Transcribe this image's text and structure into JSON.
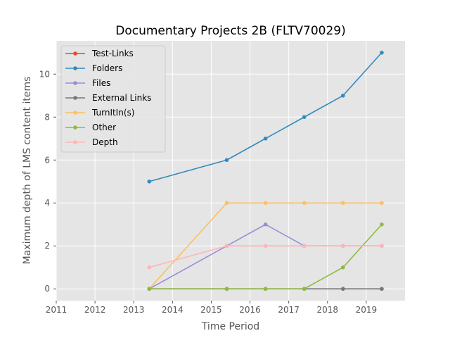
{
  "chart_data": {
    "type": "line",
    "title": "Documentary Projects 2B (FLTV70029)",
    "xlabel": "Time Period",
    "ylabel": "Maximum depth of LMS content items",
    "xlim": [
      2011.0,
      2020.0
    ],
    "ylim": [
      -0.55,
      11.55
    ],
    "x_ticks": [
      2011,
      2012,
      2013,
      2014,
      2015,
      2016,
      2017,
      2018,
      2019
    ],
    "x_tick_labels": [
      "2011",
      "2012",
      "2013",
      "2014",
      "2015",
      "2016",
      "2017",
      "2018",
      "2019"
    ],
    "y_ticks": [
      0,
      2,
      4,
      6,
      8,
      10
    ],
    "y_tick_labels": [
      "0",
      "2",
      "4",
      "6",
      "8",
      "10"
    ],
    "grid": true,
    "legend_position": "top-left",
    "x": [
      2013.4,
      2015.4,
      2016.4,
      2017.4,
      2018.4,
      2019.4
    ],
    "series": [
      {
        "name": "Test-Links",
        "color": "#e24a33",
        "values": [
          null,
          null,
          null,
          null,
          null,
          null
        ]
      },
      {
        "name": "Folders",
        "color": "#348abd",
        "values": [
          5,
          6,
          7,
          8,
          9,
          11
        ]
      },
      {
        "name": "Files",
        "color": "#988ed5",
        "values": [
          0,
          2,
          3,
          2,
          2,
          2
        ]
      },
      {
        "name": "External Links",
        "color": "#777777",
        "values": [
          0,
          0,
          0,
          0,
          0,
          0
        ]
      },
      {
        "name": "TurnItIn(s)",
        "color": "#fbc15e",
        "values": [
          0,
          4,
          4,
          4,
          4,
          4
        ]
      },
      {
        "name": "Other",
        "color": "#8eba42",
        "values": [
          0,
          0,
          0,
          0,
          1,
          3
        ]
      },
      {
        "name": "Depth",
        "color": "#ffb5b8",
        "values": [
          1,
          2,
          2,
          2,
          2,
          2
        ]
      }
    ]
  }
}
